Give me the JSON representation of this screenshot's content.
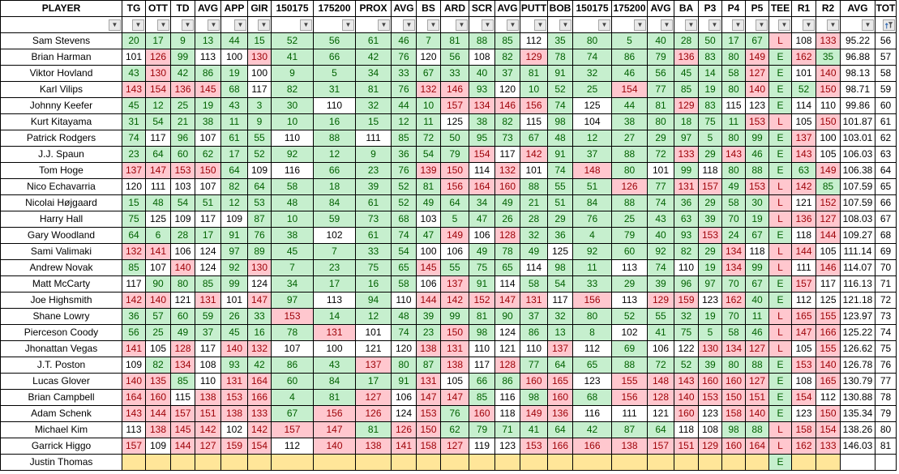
{
  "table": {
    "columns": [
      "PLAYER",
      "TG",
      "OTT",
      "TD",
      "AVG",
      "APP",
      "GIR",
      "150175",
      "175200",
      "PROX",
      "AVG",
      "BS",
      "ARD",
      "SCR",
      "AVG",
      "PUTT",
      "BOB",
      "150175",
      "175200",
      "AVG",
      "BA",
      "P3",
      "P4",
      "P5",
      "TEE",
      "R1",
      "R2",
      "AVG",
      "TOT"
    ],
    "filter_row": {
      "dropdown_icon": "dropdown-arrow-icon",
      "tot_icon": "sort-filter-icon"
    },
    "rows": [
      {
        "cells": [
          "Sam Stevens",
          "20",
          "17",
          "9",
          "13",
          "44",
          "15",
          "52",
          "56",
          "61",
          "46",
          "7",
          "81",
          "88",
          "85",
          "112",
          "35",
          "80",
          "5",
          "40",
          "28",
          "50",
          "17",
          "67",
          "L",
          "108",
          "133",
          "95.22",
          "56"
        ],
        "highlight": false
      },
      {
        "cells": [
          "Brian Harman",
          "101",
          "126",
          "99",
          "113",
          "100",
          "130",
          "41",
          "66",
          "42",
          "76",
          "120",
          "56",
          "108",
          "82",
          "129",
          "78",
          "74",
          "86",
          "79",
          "136",
          "83",
          "80",
          "149",
          "E",
          "162",
          "35",
          "96.88",
          "57"
        ],
        "highlight": false
      },
      {
        "cells": [
          "Viktor Hovland",
          "43",
          "130",
          "42",
          "86",
          "19",
          "100",
          "9",
          "5",
          "34",
          "33",
          "67",
          "33",
          "40",
          "37",
          "81",
          "91",
          "32",
          "46",
          "56",
          "45",
          "14",
          "58",
          "127",
          "E",
          "101",
          "140",
          "98.13",
          "58"
        ],
        "highlight": false
      },
      {
        "cells": [
          "Karl Vilips",
          "143",
          "154",
          "136",
          "145",
          "68",
          "117",
          "82",
          "31",
          "81",
          "76",
          "132",
          "146",
          "93",
          "120",
          "10",
          "52",
          "25",
          "154",
          "77",
          "85",
          "19",
          "80",
          "140",
          "E",
          "52",
          "150",
          "98.71",
          "59"
        ],
        "highlight": false
      },
      {
        "cells": [
          "Johnny Keefer",
          "45",
          "12",
          "25",
          "19",
          "43",
          "3",
          "30",
          "110",
          "32",
          "44",
          "10",
          "157",
          "134",
          "146",
          "156",
          "74",
          "125",
          "44",
          "81",
          "129",
          "83",
          "115",
          "123",
          "E",
          "114",
          "110",
          "99.86",
          "60"
        ],
        "highlight": false
      },
      {
        "cells": [
          "Kurt Kitayama",
          "31",
          "54",
          "21",
          "38",
          "11",
          "9",
          "10",
          "16",
          "15",
          "12",
          "11",
          "125",
          "38",
          "82",
          "115",
          "98",
          "104",
          "38",
          "80",
          "18",
          "75",
          "11",
          "153",
          "L",
          "105",
          "150",
          "101.87",
          "61"
        ],
        "highlight": false
      },
      {
        "cells": [
          "Patrick Rodgers",
          "74",
          "117",
          "96",
          "107",
          "61",
          "55",
          "110",
          "88",
          "111",
          "85",
          "72",
          "50",
          "95",
          "73",
          "67",
          "48",
          "12",
          "27",
          "29",
          "97",
          "5",
          "80",
          "99",
          "E",
          "137",
          "100",
          "103.01",
          "62"
        ],
        "highlight": false
      },
      {
        "cells": [
          "J.J. Spaun",
          "23",
          "64",
          "60",
          "62",
          "17",
          "52",
          "92",
          "12",
          "9",
          "36",
          "54",
          "79",
          "154",
          "117",
          "142",
          "91",
          "37",
          "88",
          "72",
          "133",
          "29",
          "143",
          "46",
          "E",
          "143",
          "105",
          "106.03",
          "63"
        ],
        "highlight": false
      },
      {
        "cells": [
          "Tom Hoge",
          "137",
          "147",
          "153",
          "150",
          "64",
          "109",
          "116",
          "66",
          "23",
          "76",
          "139",
          "150",
          "114",
          "132",
          "101",
          "74",
          "148",
          "80",
          "101",
          "99",
          "118",
          "80",
          "88",
          "E",
          "63",
          "149",
          "106.38",
          "64"
        ],
        "highlight": false
      },
      {
        "cells": [
          "Nico Echavarria",
          "120",
          "111",
          "103",
          "107",
          "82",
          "64",
          "58",
          "18",
          "39",
          "52",
          "81",
          "156",
          "164",
          "160",
          "88",
          "55",
          "51",
          "126",
          "77",
          "131",
          "157",
          "49",
          "153",
          "L",
          "142",
          "85",
          "107.59",
          "65"
        ],
        "highlight": false
      },
      {
        "cells": [
          "Nicolai Højgaard",
          "15",
          "48",
          "54",
          "51",
          "12",
          "53",
          "48",
          "84",
          "61",
          "52",
          "49",
          "64",
          "34",
          "49",
          "21",
          "51",
          "84",
          "88",
          "74",
          "36",
          "29",
          "58",
          "30",
          "L",
          "121",
          "152",
          "107.59",
          "66"
        ],
        "highlight": false
      },
      {
        "cells": [
          "Harry Hall",
          "75",
          "125",
          "109",
          "117",
          "109",
          "87",
          "10",
          "59",
          "73",
          "68",
          "103",
          "5",
          "47",
          "26",
          "28",
          "29",
          "76",
          "25",
          "43",
          "63",
          "39",
          "70",
          "19",
          "L",
          "136",
          "127",
          "108.03",
          "67"
        ],
        "highlight": false
      },
      {
        "cells": [
          "Gary Woodland",
          "64",
          "6",
          "28",
          "17",
          "91",
          "76",
          "38",
          "102",
          "61",
          "74",
          "47",
          "149",
          "106",
          "128",
          "32",
          "36",
          "4",
          "79",
          "40",
          "93",
          "153",
          "24",
          "67",
          "E",
          "118",
          "144",
          "109.27",
          "68"
        ],
        "highlight": false
      },
      {
        "cells": [
          "Sami Valimaki",
          "132",
          "141",
          "106",
          "124",
          "97",
          "89",
          "45",
          "7",
          "33",
          "54",
          "100",
          "106",
          "49",
          "78",
          "49",
          "125",
          "92",
          "60",
          "92",
          "82",
          "29",
          "134",
          "118",
          "L",
          "144",
          "105",
          "111.14",
          "69"
        ],
        "highlight": false
      },
      {
        "cells": [
          "Andrew Novak",
          "85",
          "107",
          "140",
          "124",
          "92",
          "130",
          "7",
          "23",
          "75",
          "65",
          "145",
          "55",
          "75",
          "65",
          "114",
          "98",
          "11",
          "113",
          "74",
          "110",
          "19",
          "134",
          "99",
          "L",
          "111",
          "146",
          "114.07",
          "70"
        ],
        "highlight": false
      },
      {
        "cells": [
          "Matt McCarty",
          "117",
          "90",
          "80",
          "85",
          "99",
          "124",
          "34",
          "17",
          "16",
          "58",
          "106",
          "137",
          "91",
          "114",
          "58",
          "54",
          "33",
          "29",
          "39",
          "96",
          "97",
          "70",
          "67",
          "E",
          "157",
          "117",
          "116.13",
          "71"
        ],
        "highlight": false
      },
      {
        "cells": [
          "Joe Highsmith",
          "142",
          "140",
          "121",
          "131",
          "101",
          "147",
          "97",
          "113",
          "94",
          "110",
          "144",
          "142",
          "152",
          "147",
          "131",
          "117",
          "156",
          "113",
          "129",
          "159",
          "123",
          "162",
          "40",
          "E",
          "112",
          "125",
          "121.18",
          "72"
        ],
        "highlight": false
      },
      {
        "cells": [
          "Shane Lowry",
          "36",
          "57",
          "60",
          "59",
          "26",
          "33",
          "153",
          "14",
          "12",
          "48",
          "39",
          "99",
          "81",
          "90",
          "37",
          "32",
          "80",
          "52",
          "55",
          "32",
          "19",
          "70",
          "11",
          "L",
          "165",
          "155",
          "123.97",
          "73"
        ],
        "highlight": false
      },
      {
        "cells": [
          "Pierceson Coody",
          "56",
          "25",
          "49",
          "37",
          "45",
          "16",
          "78",
          "131",
          "101",
          "74",
          "23",
          "150",
          "98",
          "124",
          "86",
          "13",
          "8",
          "102",
          "41",
          "75",
          "5",
          "58",
          "46",
          "L",
          "147",
          "166",
          "125.22",
          "74"
        ],
        "highlight": false
      },
      {
        "cells": [
          "Jhonattan Vegas",
          "141",
          "105",
          "128",
          "117",
          "140",
          "132",
          "107",
          "100",
          "121",
          "120",
          "138",
          "131",
          "110",
          "121",
          "110",
          "137",
          "112",
          "69",
          "106",
          "122",
          "130",
          "134",
          "127",
          "L",
          "105",
          "155",
          "126.62",
          "75"
        ],
        "highlight": false
      },
      {
        "cells": [
          "J.T. Poston",
          "109",
          "82",
          "134",
          "108",
          "93",
          "42",
          "86",
          "43",
          "137",
          "80",
          "87",
          "138",
          "117",
          "128",
          "77",
          "64",
          "65",
          "88",
          "72",
          "52",
          "39",
          "80",
          "88",
          "E",
          "153",
          "140",
          "126.78",
          "76"
        ],
        "highlight": false
      },
      {
        "cells": [
          "Lucas Glover",
          "140",
          "135",
          "85",
          "110",
          "131",
          "164",
          "60",
          "84",
          "17",
          "91",
          "131",
          "105",
          "66",
          "86",
          "160",
          "165",
          "123",
          "155",
          "148",
          "143",
          "160",
          "160",
          "127",
          "E",
          "108",
          "165",
          "130.79",
          "77"
        ],
        "highlight": false
      },
      {
        "cells": [
          "Brian Campbell",
          "164",
          "160",
          "115",
          "138",
          "153",
          "166",
          "4",
          "81",
          "127",
          "106",
          "147",
          "147",
          "85",
          "116",
          "98",
          "160",
          "68",
          "156",
          "128",
          "140",
          "153",
          "150",
          "151",
          "E",
          "154",
          "112",
          "130.88",
          "78"
        ],
        "highlight": false
      },
      {
        "cells": [
          "Adam Schenk",
          "143",
          "144",
          "157",
          "151",
          "138",
          "133",
          "67",
          "156",
          "126",
          "124",
          "153",
          "76",
          "160",
          "118",
          "149",
          "136",
          "116",
          "111",
          "121",
          "160",
          "123",
          "158",
          "140",
          "E",
          "123",
          "150",
          "135.34",
          "79"
        ],
        "highlight": false
      },
      {
        "cells": [
          "Michael Kim",
          "113",
          "138",
          "145",
          "142",
          "102",
          "142",
          "157",
          "147",
          "81",
          "126",
          "150",
          "62",
          "79",
          "71",
          "41",
          "64",
          "42",
          "87",
          "64",
          "118",
          "108",
          "98",
          "88",
          "L",
          "158",
          "154",
          "138.26",
          "80"
        ],
        "highlight": false
      },
      {
        "cells": [
          "Garrick Higgo",
          "157",
          "109",
          "144",
          "127",
          "159",
          "154",
          "112",
          "140",
          "138",
          "141",
          "158",
          "127",
          "119",
          "123",
          "153",
          "166",
          "166",
          "138",
          "157",
          "151",
          "129",
          "160",
          "164",
          "L",
          "162",
          "133",
          "146.03",
          "81"
        ],
        "highlight": false
      },
      {
        "cells": [
          "Justin Thomas",
          "",
          "",
          "",
          "",
          "",
          "",
          "",
          "",
          "",
          "",
          "",
          "",
          "",
          "",
          "",
          "",
          "",
          "",
          "",
          "",
          "",
          "",
          "",
          "E",
          "",
          "",
          "",
          ""
        ],
        "highlight": true
      }
    ]
  },
  "colors": {
    "good_bg": "#C6EFCE",
    "good_text": "#006100",
    "bad_bg": "#FFC7CE",
    "bad_text": "#9C0006",
    "neutral_bg": "#FFFFFF",
    "neutral_text": "#000000",
    "pending_bg": "#FFE699",
    "grid_border": "#000000"
  }
}
